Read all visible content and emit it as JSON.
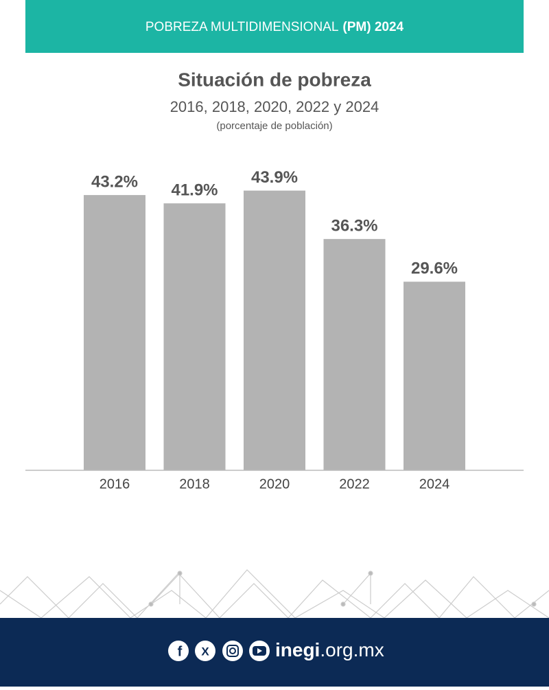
{
  "header": {
    "title": "POBREZA MULTIDIMENSIONAL",
    "title_bold": "(PM) 2024"
  },
  "chart_data": {
    "type": "bar",
    "title": "Situación de pobreza",
    "subtitle": "2016, 2018, 2020, 2022 y 2024",
    "note": "(porcentaje de población)",
    "categories": [
      "2016",
      "2018",
      "2020",
      "2022",
      "2024"
    ],
    "values": [
      43.2,
      41.9,
      43.9,
      36.3,
      29.6
    ],
    "value_labels": [
      "43.2%",
      "41.9%",
      "43.9%",
      "36.3%",
      "29.6%"
    ],
    "color": "#b3b3b3"
  },
  "footer": {
    "site_bold": "inegi",
    "site": ".org.mx"
  }
}
